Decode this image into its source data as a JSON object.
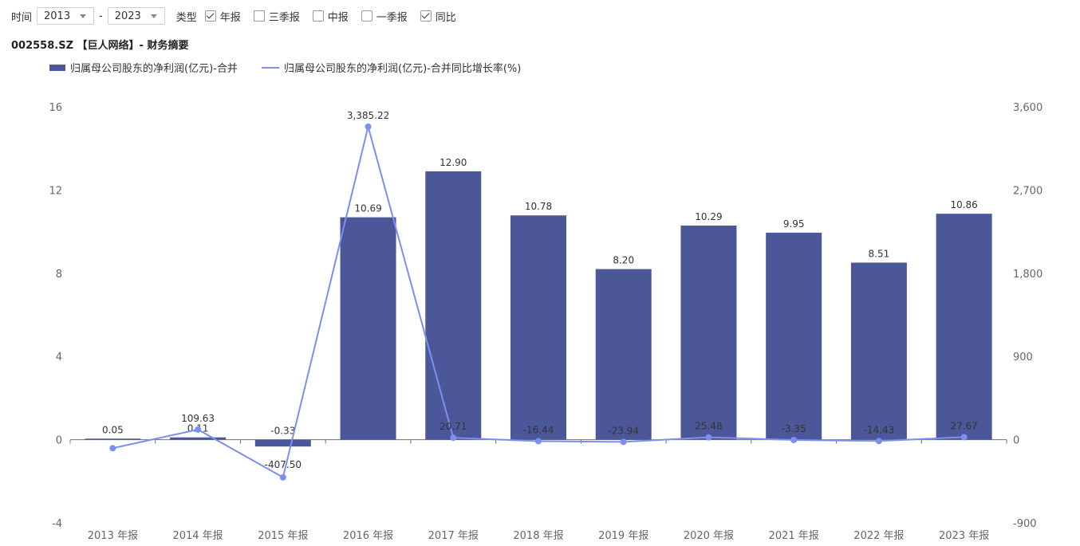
{
  "controls": {
    "time_label": "时间",
    "from_year": "2013",
    "separator": "-",
    "to_year": "2023",
    "type_label": "类型",
    "checkboxes": [
      {
        "label": "年报",
        "checked": true
      },
      {
        "label": "三季报",
        "checked": false
      },
      {
        "label": "中报",
        "checked": false
      },
      {
        "label": "一季报",
        "checked": false
      },
      {
        "label": "同比",
        "checked": true
      }
    ]
  },
  "page_title": "002558.SZ 【巨人网络】- 财务摘要",
  "colors": {
    "bar": "#4c5799",
    "line": "#7b8ff0",
    "axis_text": "#666666"
  },
  "chart_data": {
    "type": "bar",
    "categories": [
      "2013 年报",
      "2014 年报",
      "2015 年报",
      "2016 年报",
      "2017 年报",
      "2018 年报",
      "2019 年报",
      "2020 年报",
      "2021 年报",
      "2022 年报",
      "2023 年报"
    ],
    "series": [
      {
        "name": "归属母公司股东的净利润(亿元)-合并",
        "type": "bar",
        "axis": "left",
        "values": [
          0.05,
          0.11,
          -0.33,
          10.69,
          12.9,
          10.78,
          8.2,
          10.29,
          9.95,
          8.51,
          10.86
        ],
        "labels": [
          "0.05",
          "0.11",
          "-0.33",
          "10.69",
          "12.90",
          "10.78",
          "8.20",
          "10.29",
          "9.95",
          "8.51",
          "10.86"
        ]
      },
      {
        "name": "归属母公司股东的净利润(亿元)-合并同比增长率(%)",
        "type": "line",
        "axis": "right",
        "values": [
          -92,
          109.63,
          -407.5,
          3385.22,
          20.71,
          -16.44,
          -23.94,
          25.48,
          -3.35,
          -14.43,
          27.67
        ],
        "labels": [
          "",
          "109.63",
          "-407.50",
          "3,385.22",
          "20.71",
          "-16.44",
          "-23.94",
          "25.48",
          "-3.35",
          "-14.43",
          "27.67"
        ]
      }
    ],
    "left_axis": {
      "ticks": [
        "16",
        "12",
        "8",
        "4",
        "0",
        "-4"
      ],
      "min": -4,
      "max": 16
    },
    "right_axis": {
      "ticks": [
        "3,600",
        "2,700",
        "1,800",
        "900",
        "0",
        "-900"
      ],
      "min": -900,
      "max": 3600
    },
    "legend_position": "top-left",
    "grid": false
  }
}
